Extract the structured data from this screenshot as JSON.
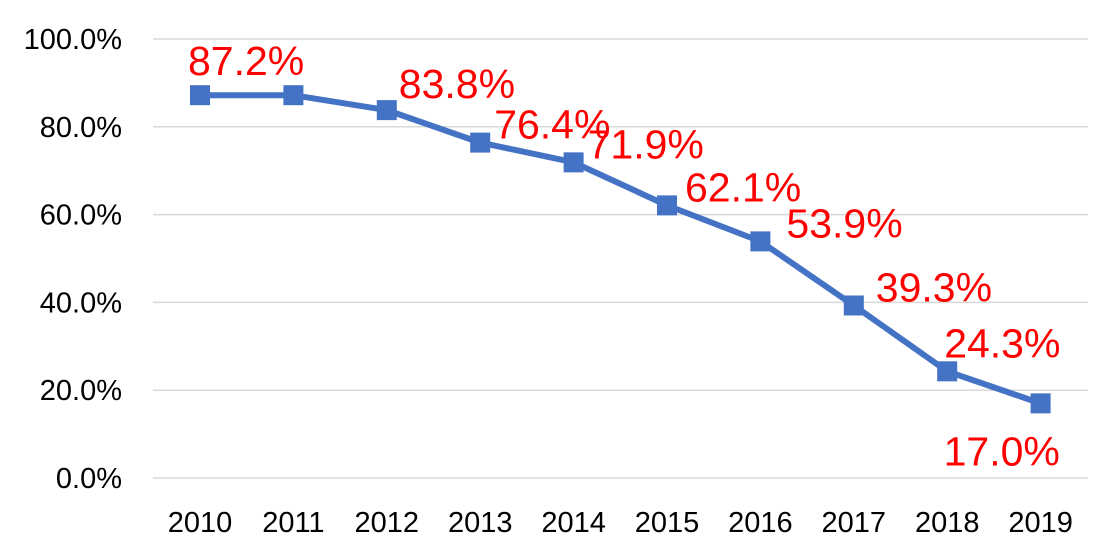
{
  "chart_data": {
    "type": "line",
    "title": "",
    "xlabel": "",
    "ylabel": "",
    "categories": [
      "2010",
      "2011",
      "2012",
      "2013",
      "2014",
      "2015",
      "2016",
      "2017",
      "2018",
      "2019"
    ],
    "series": [
      {
        "values": [
          87.2,
          87.2,
          83.8,
          76.4,
          71.9,
          62.1,
          53.9,
          39.3,
          24.3,
          17.0
        ],
        "data_labels": [
          "87.2%",
          "",
          "83.8%",
          "76.4%",
          "71.9%",
          "62.1%",
          "53.9%",
          "39.3%",
          "24.3%",
          "17.0%"
        ],
        "color": "#4472c4",
        "marker": "square"
      }
    ],
    "ylim": [
      0,
      100
    ],
    "yticks": [
      0,
      20,
      40,
      60,
      80,
      100
    ],
    "ytick_labels": [
      "0.0%",
      "20.0%",
      "40.0%",
      "60.0%",
      "80.0%",
      "100.0%"
    ],
    "grid": true,
    "legend": "none",
    "label_color": "#ff0000"
  }
}
